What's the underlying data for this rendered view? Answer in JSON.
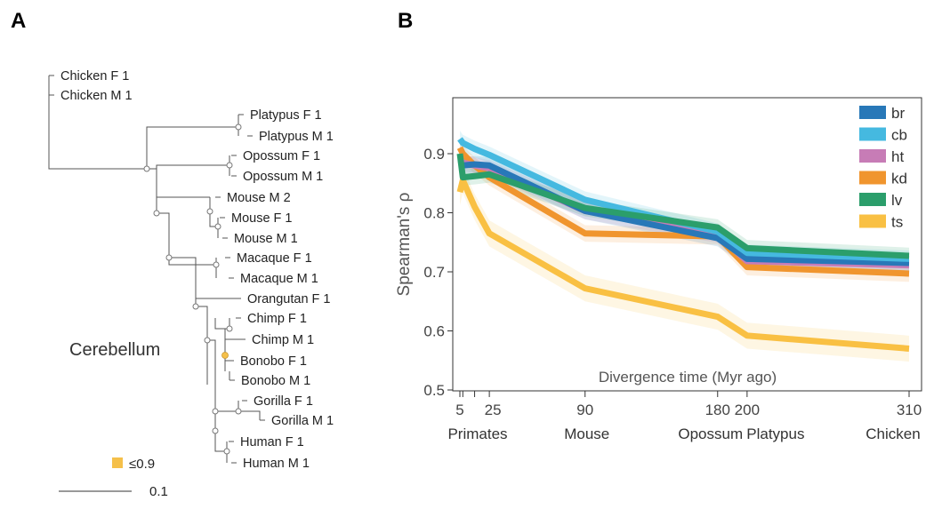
{
  "panels": {
    "a": "A",
    "b": "B"
  },
  "tree": {
    "tissue_label": "Cerebellum",
    "tips": [
      {
        "label": "Chicken F 1",
        "color": "#222222"
      },
      {
        "label": "Chicken M 1",
        "color": "#222222"
      },
      {
        "label": "Platypus F 1",
        "color": "#2b4ea2"
      },
      {
        "label": "Platypus M 1",
        "color": "#2b4ea2"
      },
      {
        "label": "Opossum F 1",
        "color": "#2b4ea2"
      },
      {
        "label": "Opossum M 1",
        "color": "#2b4ea2"
      },
      {
        "label": "Mouse M 2",
        "color": "#222222"
      },
      {
        "label": "Mouse F 1",
        "color": "#222222"
      },
      {
        "label": "Mouse M 1",
        "color": "#222222"
      },
      {
        "label": "Macaque F 1",
        "color": "#222222"
      },
      {
        "label": "Macaque M 1",
        "color": "#222222"
      },
      {
        "label": "Orangutan F 1",
        "color": "#222222"
      },
      {
        "label": "Chimp F 1",
        "color": "#222222"
      },
      {
        "label": "Chimp M 1",
        "color": "#222222"
      },
      {
        "label": "Bonobo F 1",
        "color": "#222222"
      },
      {
        "label": "Bonobo M 1",
        "color": "#222222"
      },
      {
        "label": "Gorilla F 1",
        "color": "#222222"
      },
      {
        "label": "Gorilla M 1",
        "color": "#222222"
      },
      {
        "label": "Human F 1",
        "color": "#222222"
      },
      {
        "label": "Human M 1",
        "color": "#222222"
      }
    ],
    "bootstrap_legend": {
      "label": "≤0.9",
      "color": "#f5c04a"
    },
    "scale_bar": {
      "label": "0.1",
      "value": 0.1
    }
  },
  "chart_data": {
    "type": "line",
    "title": "",
    "xlabel": "Divergence time (Myr ago)",
    "ylabel": "Spearman's ρ",
    "xlim": [
      0,
      310
    ],
    "ylim": [
      0.5,
      0.95
    ],
    "xticks": [
      5,
      25,
      90,
      180,
      200,
      310
    ],
    "yticks": [
      0.5,
      0.6,
      0.7,
      0.8,
      0.9
    ],
    "ytick_labels": [
      "0.5",
      "0.6",
      "0.7",
      "0.8",
      "0.9"
    ],
    "categories": [
      {
        "label": "Primates",
        "x": 5
      },
      {
        "label": "Mouse",
        "x": 90
      },
      {
        "label": "Opossum",
        "x": 180
      },
      {
        "label": "Platypus",
        "x": 200
      },
      {
        "label": "Chicken",
        "x": 310
      }
    ],
    "legend_position": "top-right",
    "grid": false,
    "x": [
      5,
      7,
      15,
      25,
      90,
      180,
      200,
      310
    ],
    "series": [
      {
        "name": "br",
        "color": "#2878b8",
        "values": [
          0.88,
          0.88,
          0.882,
          0.88,
          0.803,
          0.757,
          0.722,
          0.715
        ]
      },
      {
        "name": "cb",
        "color": "#45b9e0",
        "values": [
          0.925,
          0.918,
          0.908,
          0.898,
          0.822,
          0.768,
          0.732,
          0.722
        ]
      },
      {
        "name": "ht",
        "color": "#c77cb6",
        "values": [
          0.89,
          0.885,
          0.88,
          0.875,
          0.803,
          0.763,
          0.718,
          0.711
        ]
      },
      {
        "name": "kd",
        "color": "#f0952e",
        "values": [
          0.91,
          0.9,
          0.88,
          0.86,
          0.765,
          0.76,
          0.708,
          0.697
        ]
      },
      {
        "name": "lv",
        "color": "#2b9e6b",
        "values": [
          0.9,
          0.86,
          0.862,
          0.865,
          0.808,
          0.775,
          0.74,
          0.727
        ]
      },
      {
        "name": "ts",
        "color": "#f9c043",
        "values": [
          0.835,
          0.855,
          0.81,
          0.765,
          0.672,
          0.624,
          0.592,
          0.57
        ]
      }
    ]
  }
}
